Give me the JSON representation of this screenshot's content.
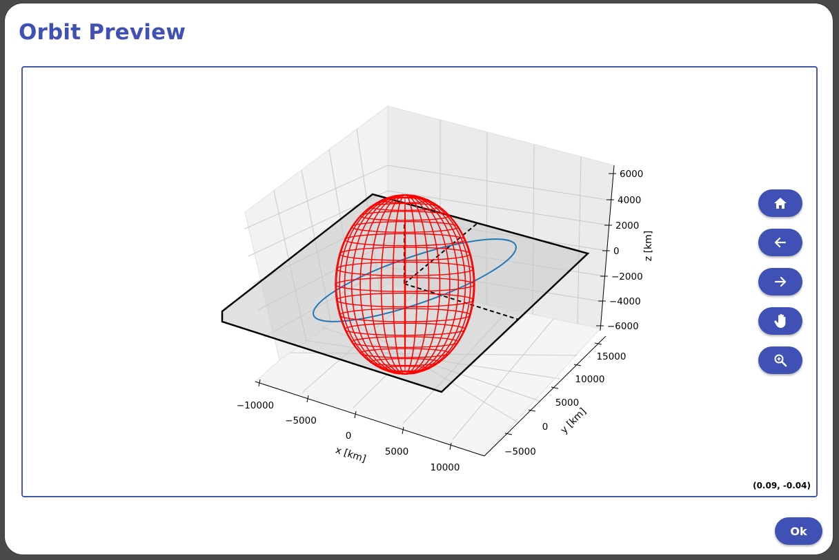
{
  "dialog": {
    "title": "Orbit Preview",
    "ok_label": "Ok"
  },
  "plot": {
    "coordinate_readout": "(0.09, -0.04)",
    "x_axis": {
      "label": "x [km]",
      "ticks": [
        "−10000",
        "−5000",
        "0",
        "5000",
        "10000"
      ]
    },
    "y_axis": {
      "label": "y [km]",
      "ticks": [
        "−5000",
        "0",
        "5000",
        "10000",
        "15000"
      ]
    },
    "z_axis": {
      "label": "z [km]",
      "ticks": [
        "6000",
        "4000",
        "2000",
        "0",
        "−2000",
        "−4000",
        "−6000"
      ]
    },
    "colors": {
      "earth": "#ff0000",
      "orbit": "#1f77b4",
      "plane": "#d8d8d8"
    }
  },
  "toolbar": {
    "buttons": [
      {
        "name": "home",
        "icon": "home-icon"
      },
      {
        "name": "back",
        "icon": "arrow-left-icon"
      },
      {
        "name": "forward",
        "icon": "arrow-right-icon"
      },
      {
        "name": "pan",
        "icon": "hand-icon"
      },
      {
        "name": "zoom",
        "icon": "zoom-in-icon"
      }
    ]
  }
}
